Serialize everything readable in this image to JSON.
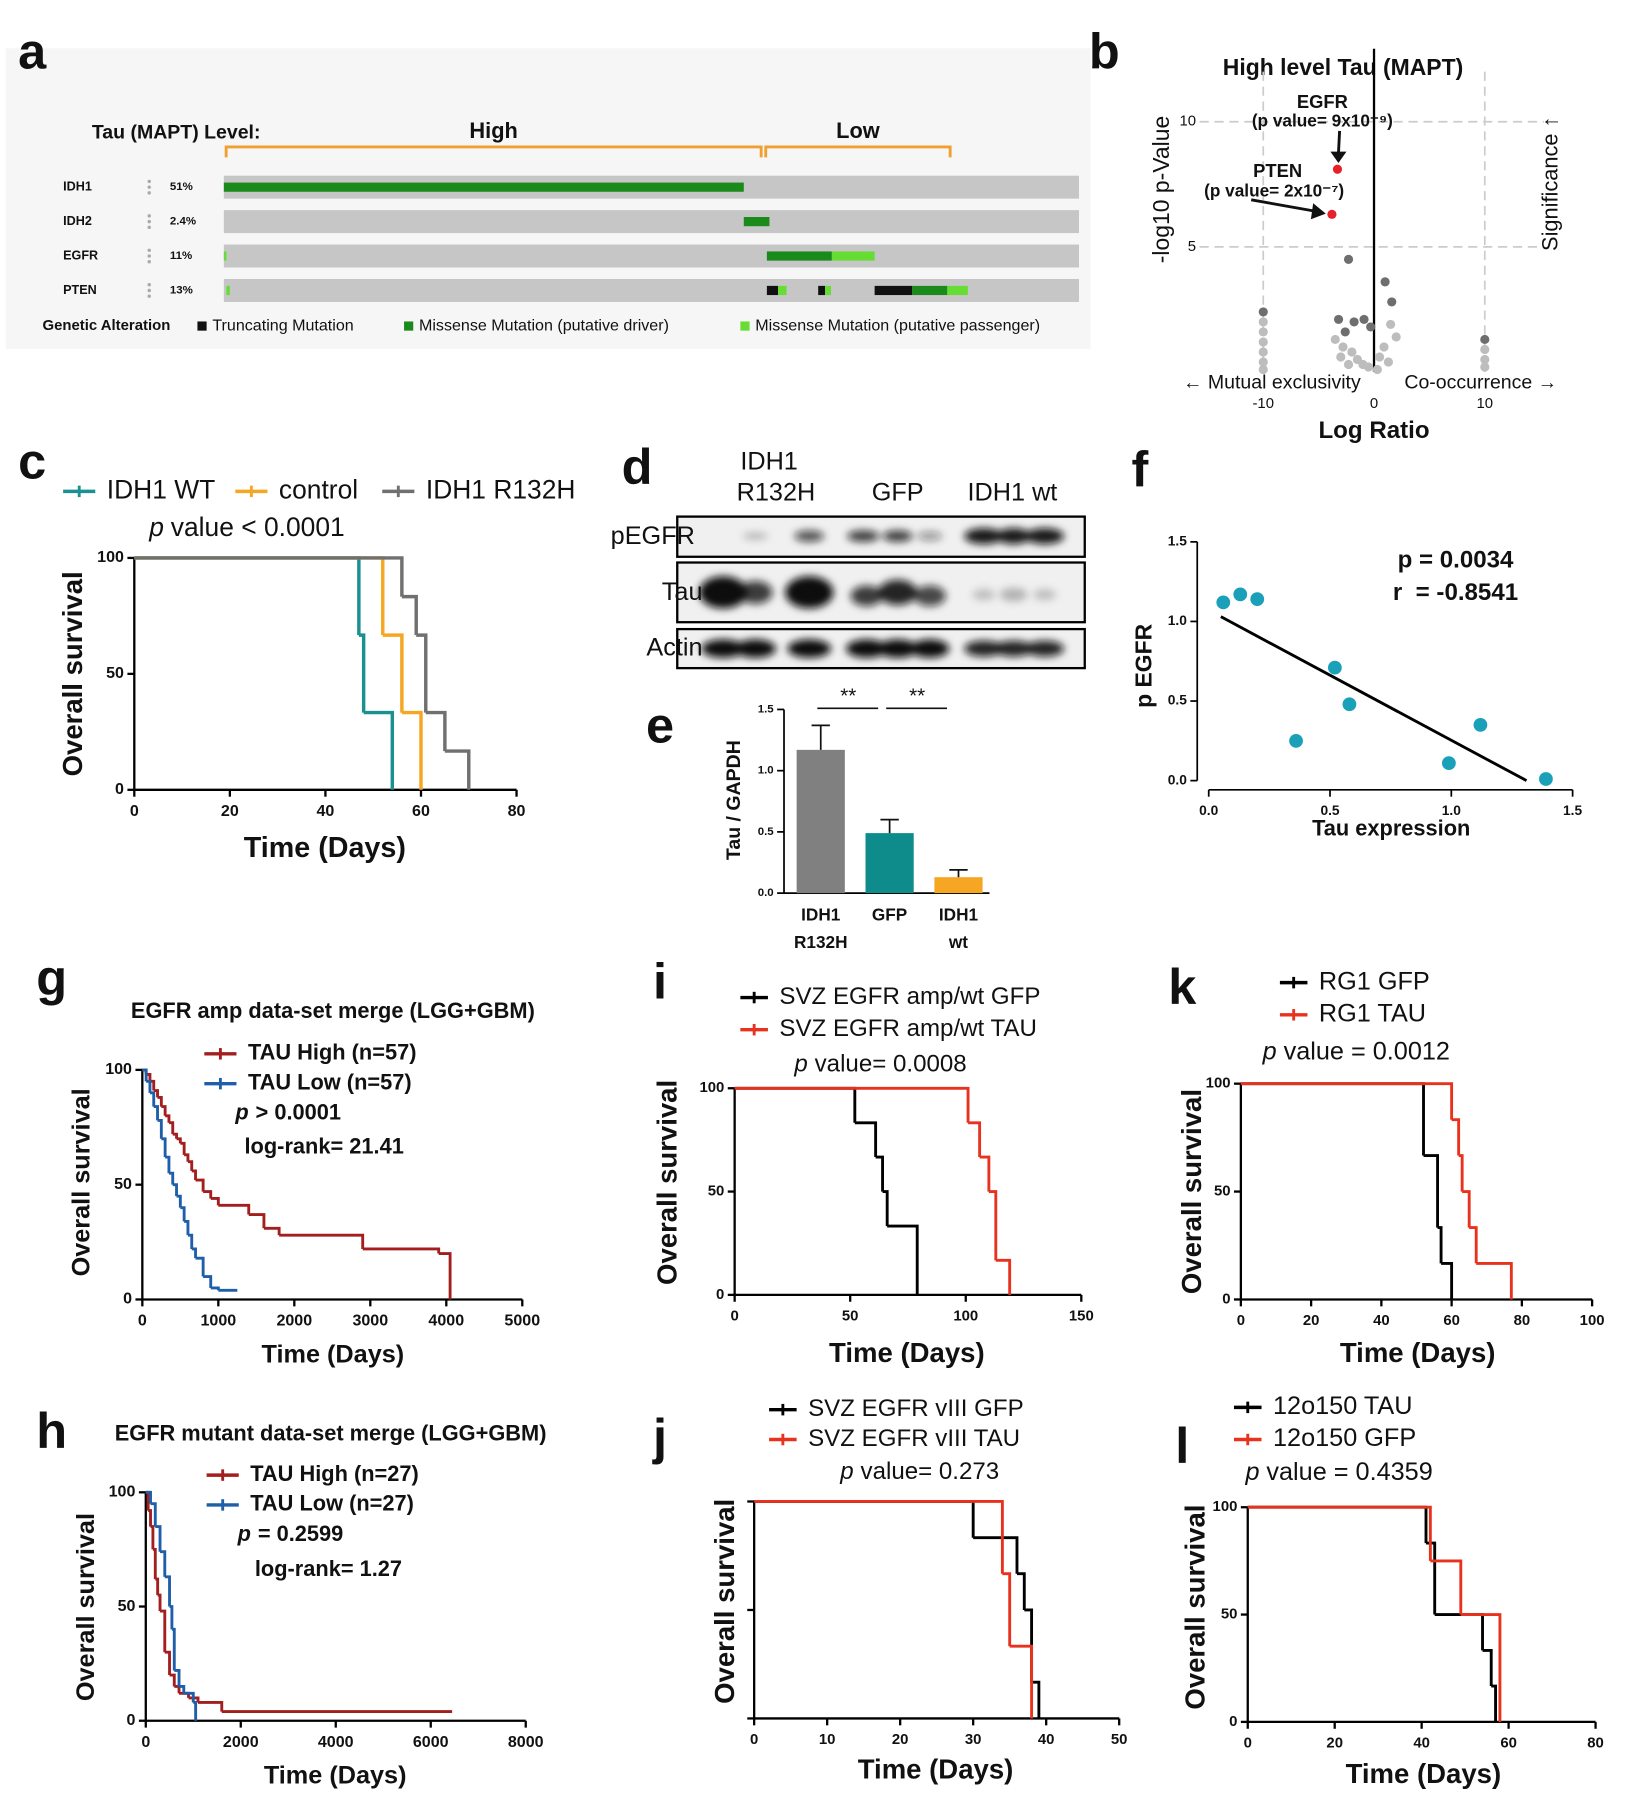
{
  "chart_data": [
    {
      "label": "a",
      "type": "oncoprint",
      "level_label": "Tau (MAPT) Level:",
      "xlim": [
        0,
        100
      ],
      "groups": [
        {
          "name": "High",
          "start": 0,
          "end": 63.1
        },
        {
          "name": "Low",
          "start": 63.1,
          "end": 85.2
        }
      ],
      "rows": [
        {
          "gene": "IDH1",
          "altered": "51%",
          "segments": [
            {
              "kind": 1,
              "start": 0,
              "end": 60.8
            }
          ]
        },
        {
          "gene": "IDH2",
          "altered": "2.4%",
          "segments": [
            {
              "kind": 1,
              "start": 60.8,
              "end": 63.8
            }
          ]
        },
        {
          "gene": "EGFR",
          "altered": "11%",
          "segments": [
            {
              "kind": 2,
              "start": 0,
              "end": 0.3
            },
            {
              "kind": 1,
              "start": 63.5,
              "end": 71.1
            },
            {
              "kind": 2,
              "start": 71.1,
              "end": 76.1
            }
          ]
        },
        {
          "gene": "PTEN",
          "altered": "13%",
          "segments": [
            {
              "kind": 2,
              "start": 0.3,
              "end": 0.7
            },
            {
              "kind": 0,
              "start": 63.5,
              "end": 64.8
            },
            {
              "kind": 2,
              "start": 64.8,
              "end": 65.8
            },
            {
              "kind": 0,
              "start": 69.5,
              "end": 70.3
            },
            {
              "kind": 2,
              "start": 70.3,
              "end": 71.0
            },
            {
              "kind": 0,
              "start": 76.1,
              "end": 80.5
            },
            {
              "kind": 1,
              "start": 80.5,
              "end": 84.6
            },
            {
              "kind": 2,
              "start": 84.6,
              "end": 87.0
            }
          ]
        }
      ],
      "legend_title": "Genetic Alteration",
      "alteration_types": [
        {
          "name": "Truncating Mutation",
          "color": "#111111"
        },
        {
          "name": "Missense Mutation (putative driver)",
          "color": "#1a8a1a"
        },
        {
          "name": "Missense Mutation (putative passenger)",
          "color": "#66dd33"
        }
      ]
    },
    {
      "label": "b",
      "type": "volcano",
      "title": "High level Tau (MAPT)",
      "xlabel": "Log Ratio",
      "ylabel": "-log10 p-Value",
      "ylabel_right": "Significance ↑",
      "left_note": "← Mutual exclusivity",
      "right_note": "Co-occurrence →",
      "xlim": [
        -20,
        20
      ],
      "ylim": [
        0,
        12
      ],
      "xticks": [
        -10,
        0,
        10
      ],
      "yticks": [
        5,
        10
      ],
      "grid": true,
      "annotations": [
        "EGFR",
        "(p value= 9x10⁻⁹)",
        "PTEN",
        "(p value= 2x10⁻⁷)"
      ],
      "series": [
        {
          "color": "#e8202a",
          "x": [
            -3.3,
            -3.8
          ],
          "values": [
            8.1,
            6.3
          ]
        },
        {
          "color": "#6e6e6e",
          "x": [
            -2.3,
            1.0,
            1.6,
            -3.2,
            -1.8,
            -0.9,
            -0.3,
            -2.6,
            -10,
            10
          ],
          "values": [
            4.5,
            3.6,
            2.8,
            2.1,
            2.0,
            2.1,
            1.8,
            1.6,
            2.4,
            1.3
          ]
        },
        {
          "color": "#bdbdbd",
          "x": [
            -10,
            -10,
            -10,
            -10,
            -10,
            -10,
            10,
            10,
            10,
            -3.5,
            -2.8,
            -2.0,
            -1.5,
            -1.0,
            -0.5,
            0.5,
            0.9,
            1.3,
            2.0,
            -2.3,
            -3.0,
            1.5,
            0.3
          ],
          "values": [
            2.0,
            1.6,
            1.2,
            0.8,
            0.4,
            0.1,
            0.9,
            0.5,
            0.2,
            1.3,
            1.0,
            0.8,
            0.5,
            0.3,
            0.2,
            0.6,
            1.0,
            0.4,
            1.4,
            0.3,
            0.6,
            1.9,
            0.1
          ]
        }
      ]
    },
    {
      "label": "c",
      "type": "survival",
      "xlabel": "Time (Days)",
      "ylabel": "Overall survival",
      "xlim": [
        0,
        80
      ],
      "ylim": [
        0,
        100
      ],
      "xticks": [
        0,
        20,
        40,
        60,
        80
      ],
      "yticks": [
        0,
        50,
        100
      ],
      "stat": {
        "symbol": "p",
        "text": "value < 0.0001"
      },
      "series": [
        {
          "name": "IDH1 WT",
          "color": "#1a9090",
          "x": [
            0,
            47,
            48,
            54
          ],
          "values": [
            100,
            66.7,
            33.3,
            0
          ]
        },
        {
          "name": "control",
          "color": "#f5a623",
          "x": [
            0,
            52,
            56,
            60
          ],
          "values": [
            100,
            66.7,
            33.3,
            0
          ]
        },
        {
          "name": "IDH1 R132H",
          "color": "#707070",
          "x": [
            0,
            56,
            59,
            61,
            65,
            70
          ],
          "values": [
            100,
            83.3,
            66.7,
            33.3,
            16.7,
            0
          ]
        }
      ]
    },
    {
      "label": "d",
      "type": "blot",
      "lanes": [
        [
          "IDH1",
          "R132H"
        ],
        [
          "GFP"
        ],
        [
          "IDH1 wt"
        ]
      ],
      "rows": [
        "pEGFR",
        "Tau",
        "Actin"
      ]
    },
    {
      "label": "e",
      "type": "bar",
      "ylabel": "Tau / GAPDH",
      "categories": [
        [
          "IDH1",
          "R132H"
        ],
        [
          "GFP"
        ],
        [
          "IDH1",
          "wt"
        ]
      ],
      "values": [
        1.17,
        0.49,
        0.13
      ],
      "errors": [
        0.2,
        0.11,
        0.06
      ],
      "colors": [
        "#808080",
        "#0e8c8c",
        "#f5a623"
      ],
      "ylim": [
        0,
        1.5
      ],
      "yticks": [
        {
          "value": 0,
          "label": "0.0"
        },
        0.5,
        {
          "value": 1,
          "label": "1.0"
        },
        1.5
      ],
      "significance": [
        {
          "from": 0,
          "to": 1,
          "label": "**"
        },
        {
          "from": 1,
          "to": 2,
          "label": "**"
        }
      ]
    },
    {
      "label": "f",
      "type": "scatter",
      "xlabel": "Tau expression",
      "ylabel": "p EGFR",
      "color": "#1aa0b8",
      "xlim": [
        0,
        1.5
      ],
      "ylim": [
        0,
        1.5
      ],
      "xticks": [
        {
          "value": 0,
          "label": "0.0"
        },
        0.5,
        {
          "value": 1,
          "label": "1.0"
        },
        1.5
      ],
      "yticks": [
        {
          "value": 0,
          "label": "0.0"
        },
        0.5,
        {
          "value": 1,
          "label": "1.0"
        },
        1.5
      ],
      "x": [
        0.06,
        0.13,
        0.2,
        0.52,
        0.58,
        0.36,
        0.99,
        1.12,
        1.39
      ],
      "values": [
        1.12,
        1.17,
        1.14,
        0.71,
        0.48,
        0.25,
        0.11,
        0.35,
        0.01
      ],
      "fit": {
        "x": [
          0.05,
          1.31
        ],
        "values": [
          1.03,
          0
        ]
      },
      "annotations": [
        "p = 0.0034",
        "r  = -0.8541"
      ]
    },
    {
      "label": "g",
      "type": "survival",
      "title": "EGFR amp data-set merge (LGG+GBM)",
      "xlabel": "Time (Days)",
      "ylabel": "Overall survival",
      "xlim": [
        0,
        5000
      ],
      "ylim": [
        0,
        100
      ],
      "xticks": [
        0,
        1000,
        2000,
        3000,
        4000,
        5000
      ],
      "yticks": [
        0,
        50,
        100
      ],
      "stat": {
        "symbol": "p",
        "text": "> 0.0001"
      },
      "logrank": "log-rank= 21.41",
      "series": [
        {
          "name": "TAU High (n=57)",
          "color": "#a31e1e",
          "x": [
            0,
            50,
            100,
            150,
            200,
            250,
            300,
            350,
            400,
            450,
            500,
            550,
            600,
            650,
            700,
            800,
            900,
            1000,
            1400,
            1600,
            1800,
            2900,
            3900,
            4050
          ],
          "values": [
            100,
            98,
            95,
            91,
            88,
            84,
            80,
            77,
            72,
            70,
            68,
            63,
            60,
            56,
            52,
            47,
            44,
            41,
            37,
            31,
            28,
            22,
            20,
            0
          ]
        },
        {
          "name": "TAU Low (n=57)",
          "color": "#1f5ea8",
          "x": [
            0,
            50,
            100,
            150,
            200,
            250,
            300,
            350,
            400,
            450,
            500,
            550,
            600,
            650,
            700,
            800,
            900,
            1000,
            1250
          ],
          "values": [
            100,
            95,
            90,
            84,
            78,
            70,
            62,
            55,
            50,
            45,
            40,
            34,
            28,
            22,
            18,
            10,
            5,
            4,
            4
          ]
        }
      ]
    },
    {
      "label": "h",
      "type": "survival",
      "title": "EGFR mutant data-set merge (LGG+GBM)",
      "xlabel": "Time (Days)",
      "ylabel": "Overall survival",
      "xlim": [
        0,
        8000
      ],
      "ylim": [
        0,
        100
      ],
      "xticks": [
        0,
        2000,
        4000,
        6000,
        8000
      ],
      "yticks": [
        0,
        50,
        100
      ],
      "stat": {
        "symbol": "p",
        "text": "= 0.2599"
      },
      "logrank": "log-rank= 1.27",
      "series": [
        {
          "name": "TAU High (n=27)",
          "color": "#a31e1e",
          "x": [
            0,
            50,
            100,
            150,
            200,
            250,
            300,
            400,
            500,
            600,
            700,
            900,
            1100,
            1600,
            6450
          ],
          "values": [
            100,
            92,
            85,
            75,
            62,
            55,
            48,
            30,
            20,
            15,
            12,
            10,
            8,
            4,
            4
          ]
        },
        {
          "name": "TAU Low (n=27)",
          "color": "#1f5ea8",
          "x": [
            0,
            100,
            200,
            300,
            400,
            500,
            550,
            600,
            700,
            800,
            1000,
            1050
          ],
          "values": [
            100,
            95,
            85,
            74,
            63,
            50,
            40,
            22,
            15,
            12,
            8,
            0
          ]
        }
      ]
    },
    {
      "label": "i",
      "type": "survival",
      "xlabel": "Time (Days)",
      "ylabel": "Overall survival",
      "xlim": [
        0,
        150
      ],
      "ylim": [
        0,
        100
      ],
      "xticks": [
        0,
        50,
        100,
        150
      ],
      "yticks": [
        0,
        50,
        100
      ],
      "stat": {
        "symbol": "p",
        "text": "value= 0.0008"
      },
      "series": [
        {
          "name": "SVZ EGFR amp/wt GFP",
          "color": "#000000",
          "x": [
            0,
            52,
            61,
            64,
            66,
            79
          ],
          "values": [
            100,
            83.3,
            66.7,
            50,
            33.3,
            0
          ]
        },
        {
          "name": "SVZ EGFR amp/wt TAU",
          "color": "#e8321e",
          "x": [
            0,
            101,
            106,
            110,
            113,
            119
          ],
          "values": [
            100,
            83.3,
            66.7,
            50,
            16.7,
            0
          ]
        }
      ]
    },
    {
      "label": "j",
      "type": "survival",
      "xlabel": "Time (Days)",
      "ylabel": "Overall survival",
      "xlim": [
        0,
        50
      ],
      "ylim": [
        0,
        100
      ],
      "xticks": [
        0,
        10,
        20,
        30,
        40,
        50
      ],
      "yticks": [
        0,
        50,
        100
      ],
      "show_ytick_labels": false,
      "stat": {
        "symbol": "p",
        "text": "value= 0.273"
      },
      "series": [
        {
          "name": "SVZ EGFR vIII GFP",
          "color": "#000000",
          "x": [
            0,
            30,
            36,
            37,
            38,
            39
          ],
          "values": [
            100,
            83.3,
            66.7,
            50,
            16.7,
            0
          ]
        },
        {
          "name": "SVZ EGFR vIII TAU",
          "color": "#e8321e",
          "x": [
            0,
            34,
            35,
            38
          ],
          "values": [
            100,
            66.7,
            33.3,
            0
          ]
        }
      ]
    },
    {
      "label": "k",
      "type": "survival",
      "xlabel": "Time (Days)",
      "ylabel": "Overall survival",
      "xlim": [
        0,
        100
      ],
      "ylim": [
        0,
        100
      ],
      "xticks": [
        0,
        20,
        40,
        60,
        80,
        100
      ],
      "yticks": [
        0,
        50,
        100
      ],
      "stat": {
        "symbol": "p",
        "text": "value = 0.0012"
      },
      "series": [
        {
          "name": "RG1 GFP",
          "color": "#000000",
          "x": [
            0,
            52,
            56,
            57,
            60
          ],
          "values": [
            100,
            66.7,
            33.3,
            16.7,
            0
          ]
        },
        {
          "name": "RG1 TAU",
          "color": "#e8321e",
          "x": [
            0,
            60,
            62,
            63,
            65,
            67,
            77
          ],
          "values": [
            100,
            83.3,
            66.7,
            50,
            33.3,
            16.7,
            0
          ]
        }
      ]
    },
    {
      "label": "l",
      "type": "survival",
      "xlabel": "Time (Days)",
      "ylabel": "Overall survival",
      "xlim": [
        0,
        80
      ],
      "ylim": [
        0,
        100
      ],
      "xticks": [
        0,
        20,
        40,
        60,
        80
      ],
      "yticks": [
        0,
        50,
        100
      ],
      "stat": {
        "symbol": "p",
        "text": "value = 0.4359"
      },
      "series": [
        {
          "name": "12o150 TAU",
          "color": "#000000",
          "x": [
            0,
            41,
            43,
            54,
            56,
            57
          ],
          "values": [
            100,
            83.3,
            50,
            33.3,
            16.7,
            0
          ]
        },
        {
          "name": "12o150 GFP",
          "color": "#e8321e",
          "x": [
            0,
            42,
            49,
            58
          ],
          "values": [
            100,
            75,
            50,
            0
          ]
        }
      ]
    }
  ]
}
